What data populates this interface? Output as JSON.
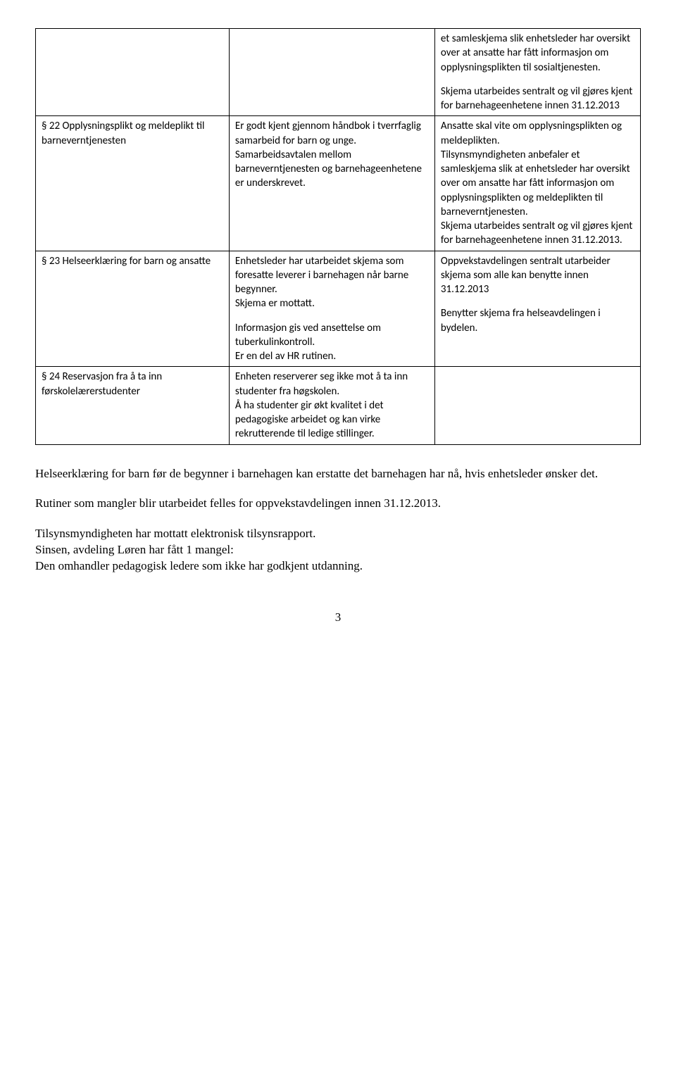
{
  "table": {
    "rows": [
      {
        "col1": "",
        "col2": "",
        "col3_paras": [
          "et samleskjema slik enhetsleder har oversikt over at ansatte har fått informasjon om opplysningsplikten til sosialtjenesten.",
          "Skjema utarbeides sentralt og vil gjøres kjent for barnehageenhetene innen 31.12.2013"
        ]
      },
      {
        "col1": "§ 22 Opplysningsplikt og meldeplikt til barneverntjenesten",
        "col2": "Er godt kjent gjennom håndbok i tverrfaglig samarbeid for barn og unge.\nSamarbeidsavtalen mellom barneverntjenesten og barnehageenhetene er underskrevet.",
        "col3": "Ansatte skal vite om opplysningsplikten og meldeplikten.\nTilsynsmyndigheten anbefaler et samleskjema slik at enhetsleder har oversikt over om ansatte har fått informasjon om opplysningsplikten og meldeplikten til barneverntjenesten.\nSkjema utarbeides sentralt og vil gjøres kjent for barnehageenhetene innen 31.12.2013."
      },
      {
        "col1": "§ 23 Helseerklæring for barn og ansatte",
        "col2_paras": [
          "Enhetsleder har utarbeidet skjema som foresatte leverer i barnehagen når barne begynner.\nSkjema er mottatt.",
          "Informasjon gis ved ansettelse om tuberkulinkontroll.\nEr en del av HR rutinen."
        ],
        "col3_paras": [
          "Oppvekstavdelingen sentralt utarbeider skjema som alle kan benytte innen 31.12.2013",
          "Benytter skjema fra helseavdelingen i bydelen."
        ]
      },
      {
        "col1": "§ 24 Reservasjon fra å ta inn førskolelærerstudenter",
        "col2": "Enheten reserverer seg ikke mot å ta inn studenter fra høgskolen.\nÅ ha studenter gir økt kvalitet i det pedagogiske arbeidet og kan virke rekrutterende til ledige stillinger.",
        "col3": ""
      }
    ]
  },
  "body": {
    "p1": "Helseerklæring for barn før de begynner i barnehagen kan erstatte det barnehagen har nå, hvis enhetsleder ønsker det.",
    "p2": "Rutiner som mangler blir utarbeidet felles for oppvekstavdelingen innen 31.12.2013.",
    "p3": "Tilsynsmyndigheten har mottatt elektronisk tilsynsrapport.",
    "p4": "Sinsen, avdeling Løren har fått 1 mangel:",
    "p5": "Den omhandler pedagogisk ledere som ikke har godkjent utdanning."
  },
  "page_number": "3"
}
